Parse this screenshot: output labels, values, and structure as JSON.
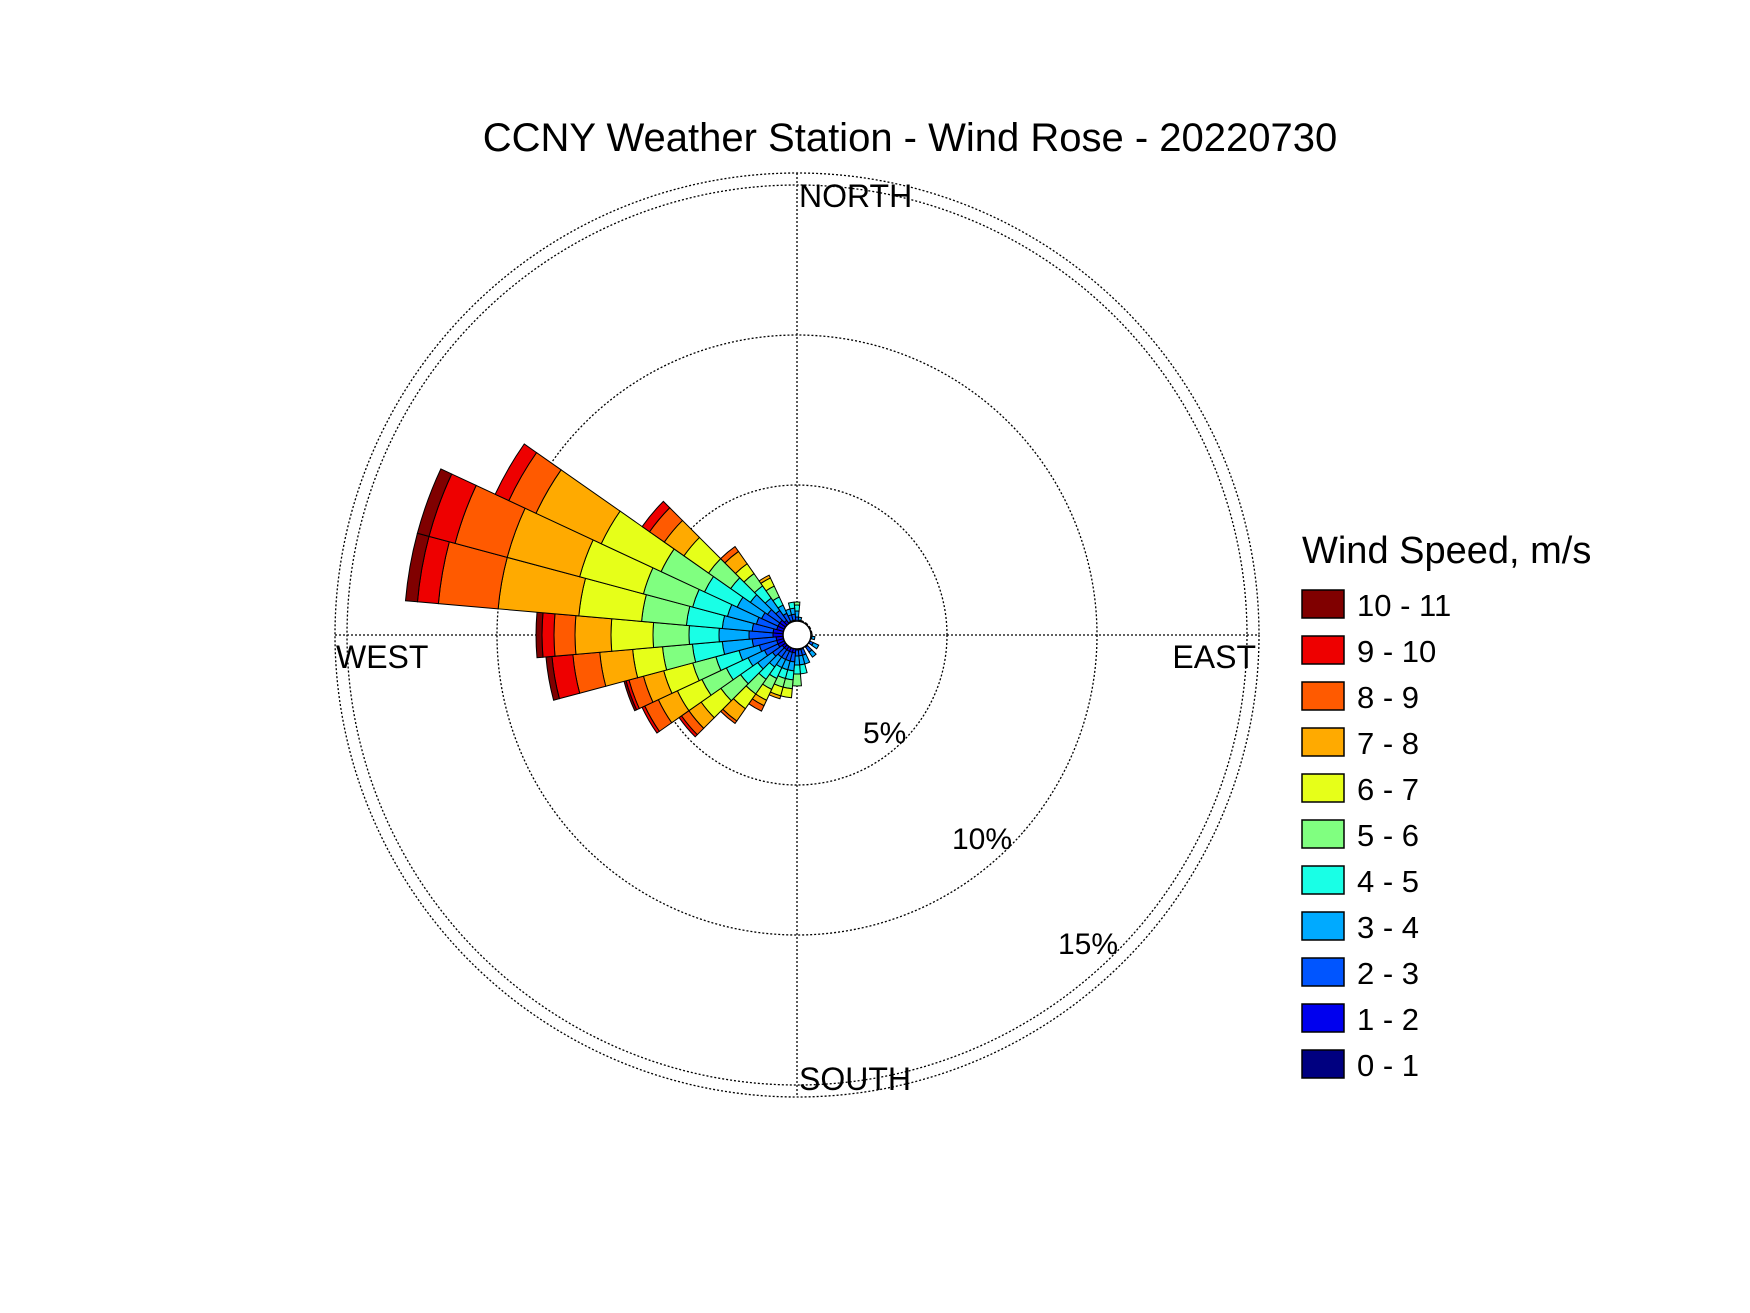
{
  "chart_data": {
    "type": "windrose",
    "title": "CCNY Weather Station - Wind Rose - 20220730",
    "direction_labels": {
      "north": "NORTH",
      "south": "SOUTH",
      "east": "EAST",
      "west": "WEST"
    },
    "radial_ticks": [
      5,
      10,
      15
    ],
    "radial_tick_labels": [
      "5%",
      "10%",
      "15%"
    ],
    "radial_max": 15.4,
    "grid": true,
    "legend_title": "Wind Speed, m/s",
    "legend_placement": "right",
    "bins": [
      {
        "label": "10 - 11",
        "color": "#800000"
      },
      {
        "label": "9 - 10",
        "color": "#ee0000"
      },
      {
        "label": "8 - 9",
        "color": "#ff5a00"
      },
      {
        "label": "7 - 8",
        "color": "#ffaa00"
      },
      {
        "label": "6 - 7",
        "color": "#e6ff19"
      },
      {
        "label": "5 - 6",
        "color": "#80ff80"
      },
      {
        "label": "4 - 5",
        "color": "#19ffe6"
      },
      {
        "label": "3 - 4",
        "color": "#00aaff"
      },
      {
        "label": "2 - 3",
        "color": "#0055ff"
      },
      {
        "label": "1 - 2",
        "color": "#0000ee"
      },
      {
        "label": "0 - 1",
        "color": "#000080"
      }
    ],
    "sector_width_deg": 10,
    "sectors": [
      {
        "direction_deg": 0,
        "cumulative_pct": [
          0.3,
          0.4,
          0.6,
          0.8,
          1.0,
          1.1
        ]
      },
      {
        "direction_deg": 10,
        "cumulative_pct": [
          0.3,
          0.4,
          0.5,
          0.6
        ]
      },
      {
        "direction_deg": 20,
        "cumulative_pct": [
          0.3,
          0.4,
          0.5
        ]
      },
      {
        "direction_deg": 40,
        "cumulative_pct": [
          0.3,
          0.4,
          0.5
        ]
      },
      {
        "direction_deg": 60,
        "cumulative_pct": [
          0.3,
          0.4,
          0.5
        ]
      },
      {
        "direction_deg": 80,
        "cumulative_pct": [
          0.3,
          0.4,
          0.5
        ]
      },
      {
        "direction_deg": 100,
        "cumulative_pct": [
          0.3,
          0.4,
          0.5,
          0.6
        ]
      },
      {
        "direction_deg": 120,
        "cumulative_pct": [
          0.3,
          0.4,
          0.6,
          0.8
        ]
      },
      {
        "direction_deg": 140,
        "cumulative_pct": [
          0.3,
          0.5,
          0.7,
          0.9
        ]
      },
      {
        "direction_deg": 160,
        "cumulative_pct": [
          0.3,
          0.5,
          0.7,
          1.0
        ]
      },
      {
        "direction_deg": 170,
        "cumulative_pct": [
          0.3,
          0.5,
          0.7,
          1.0,
          1.3
        ]
      },
      {
        "direction_deg": 180,
        "cumulative_pct": [
          0.3,
          0.5,
          0.7,
          1.0,
          1.3,
          1.7
        ]
      },
      {
        "direction_deg": 190,
        "cumulative_pct": [
          0.3,
          0.6,
          0.9,
          1.2,
          1.5,
          1.8,
          2.1
        ]
      },
      {
        "direction_deg": 200,
        "cumulative_pct": [
          0.3,
          0.6,
          0.9,
          1.2,
          1.5,
          1.8,
          2.1,
          2.2
        ]
      },
      {
        "direction_deg": 210,
        "cumulative_pct": [
          0.3,
          0.6,
          0.9,
          1.2,
          1.6,
          2.0,
          2.4,
          2.6,
          2.8
        ]
      },
      {
        "direction_deg": 220,
        "cumulative_pct": [
          0.3,
          0.6,
          0.9,
          1.3,
          1.8,
          2.4,
          3.0,
          3.5,
          3.6
        ]
      },
      {
        "direction_deg": 230,
        "cumulative_pct": [
          0.3,
          0.6,
          1.0,
          1.6,
          2.3,
          3.1,
          3.9,
          4.4,
          4.7,
          4.8
        ]
      },
      {
        "direction_deg": 240,
        "cumulative_pct": [
          0.3,
          0.7,
          1.2,
          1.8,
          2.6,
          3.5,
          4.4,
          5.1,
          5.6,
          5.7
        ]
      },
      {
        "direction_deg": 250,
        "cumulative_pct": [
          0.3,
          0.7,
          1.3,
          2.0,
          2.8,
          3.6,
          4.6,
          5.3,
          5.8,
          5.9,
          5.97
        ]
      },
      {
        "direction_deg": 260,
        "cumulative_pct": [
          0.3,
          0.7,
          1.5,
          2.5,
          3.5,
          4.5,
          5.5,
          6.6,
          7.5,
          8.2,
          8.4
        ]
      },
      {
        "direction_deg": 270,
        "cumulative_pct": [
          0.3,
          0.8,
          1.6,
          2.6,
          3.6,
          4.8,
          6.2,
          7.4,
          8.1,
          8.5,
          8.7
        ]
      },
      {
        "direction_deg": 280,
        "cumulative_pct": [
          0.3,
          0.8,
          1.5,
          2.5,
          3.7,
          5.2,
          7.3,
          10.0,
          12.0,
          12.7,
          13.1
        ]
      },
      {
        "direction_deg": 290,
        "cumulative_pct": [
          0.3,
          0.7,
          1.4,
          2.4,
          3.6,
          5.3,
          7.5,
          10.0,
          11.8,
          12.7,
          13.1
        ]
      },
      {
        "direction_deg": 300,
        "cumulative_pct": [
          0.3,
          0.7,
          1.3,
          2.2,
          3.4,
          5.0,
          7.2,
          9.6,
          10.6,
          11.1
        ]
      },
      {
        "direction_deg": 310,
        "cumulative_pct": [
          0.3,
          0.7,
          1.2,
          1.9,
          2.7,
          3.6,
          4.6,
          5.4,
          6.0,
          6.3
        ]
      },
      {
        "direction_deg": 320,
        "cumulative_pct": [
          0.3,
          0.6,
          1.0,
          1.5,
          2.0,
          2.5,
          2.9,
          3.4,
          3.6
        ]
      },
      {
        "direction_deg": 330,
        "cumulative_pct": [
          0.3,
          0.5,
          0.8,
          1.1,
          1.4,
          1.8,
          2.1,
          2.2
        ]
      },
      {
        "direction_deg": 340,
        "cumulative_pct": [
          0.3,
          0.5,
          0.7,
          0.9
        ]
      },
      {
        "direction_deg": 350,
        "cumulative_pct": [
          0.3,
          0.5,
          0.7,
          0.9,
          1.1
        ]
      }
    ]
  }
}
